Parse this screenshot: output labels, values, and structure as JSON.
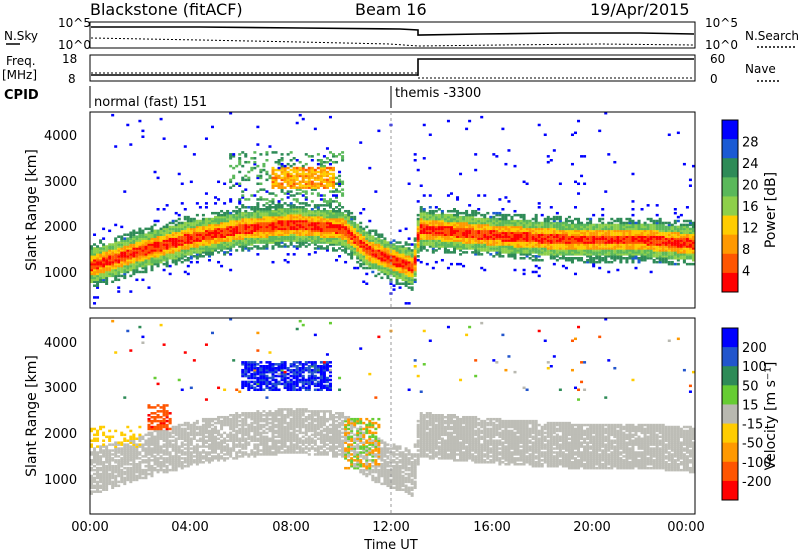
{
  "header": {
    "station": "Blackstone (fitACF)",
    "beam": "Beam 16",
    "date": "19/Apr/2015"
  },
  "top_panels": {
    "nsky_label": "N.Sky",
    "nsky_ticks": [
      "10^5",
      "10^0"
    ],
    "nsearch_ticks": [
      "10^5",
      "10^0"
    ],
    "nsearch_label": "N.Search",
    "freq_label": "Freq.",
    "freq_unit": "[MHz]",
    "freq_ticks": [
      "18",
      "8"
    ],
    "nave_ticks": [
      "60",
      "0"
    ],
    "nave_label": "Nave",
    "cpid_label": "CPID",
    "cpid_segments": [
      "normal (fast) 151",
      "themis -3300"
    ]
  },
  "colors": {
    "power": [
      "#0000ff",
      "#1a5ad4",
      "#2e8b57",
      "#5ab85a",
      "#8ed04a",
      "#ffcc00",
      "#ff9900",
      "#ff5500",
      "#ff0000"
    ],
    "velocity": [
      "#0000ff",
      "#2255cc",
      "#2e8b57",
      "#66cc33",
      "#b8b8b0",
      "#ffcc00",
      "#ff9900",
      "#ff5500",
      "#ff0000"
    ],
    "gray": "#bdbdb6"
  },
  "chart_data": [
    {
      "type": "heatmap",
      "name": "power",
      "ylabel": "Slant Range [km]",
      "ylim": [
        0,
        4500
      ],
      "yticks": [
        1000,
        2000,
        3000,
        4000
      ],
      "xlim": [
        0,
        24
      ],
      "colorbar_label": "Power [dB]",
      "colorbar_ticks": [
        "28",
        "24",
        "20",
        "16",
        "12",
        "8",
        "4"
      ],
      "ridge": [
        {
          "t": 0.0,
          "r": 950
        },
        {
          "t": 2.0,
          "r": 1300
        },
        {
          "t": 4.0,
          "r": 1600
        },
        {
          "t": 6.0,
          "r": 1800
        },
        {
          "t": 8.0,
          "r": 1900
        },
        {
          "t": 10.0,
          "r": 1800
        },
        {
          "t": 11.0,
          "r": 1300
        },
        {
          "t": 12.8,
          "r": 900
        },
        {
          "t": 13.0,
          "r": 1800
        },
        {
          "t": 16.0,
          "r": 1650
        },
        {
          "t": 19.0,
          "r": 1550
        },
        {
          "t": 22.0,
          "r": 1550
        },
        {
          "t": 24.0,
          "r": 1450
        }
      ],
      "patch_08": {
        "t": [
          7.2,
          9.6
        ],
        "r": [
          2700,
          3200
        ]
      }
    },
    {
      "type": "heatmap",
      "name": "velocity",
      "ylabel": "Slant Range [km]",
      "ylim": [
        0,
        4500
      ],
      "yticks": [
        1000,
        2000,
        3000,
        4000
      ],
      "xlim": [
        0,
        24
      ],
      "xticks": [
        "00:00",
        "04:00",
        "08:00",
        "12:00",
        "16:00",
        "20:00",
        "00:00"
      ],
      "xlabel": "Time UT",
      "colorbar_label": "Velocity [m s⁻¹]",
      "colorbar_ticks": [
        "200",
        "100",
        "50",
        "15",
        "-15",
        "-50",
        "-100",
        "-200"
      ]
    }
  ]
}
